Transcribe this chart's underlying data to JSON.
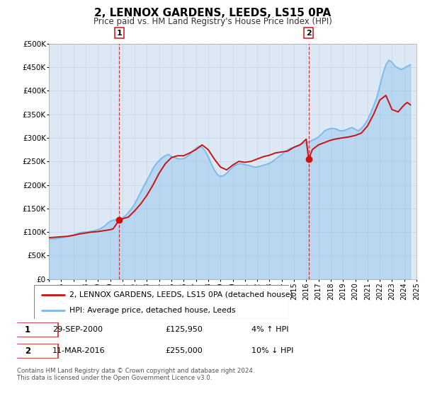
{
  "title": "2, LENNOX GARDENS, LEEDS, LS15 0PA",
  "subtitle": "Price paid vs. HM Land Registry's House Price Index (HPI)",
  "hpi_color": "#7ab8e8",
  "price_color": "#cc1111",
  "plot_bg_color": "#dce9f5",
  "grid_color": "#c8d8ec",
  "ylim": [
    0,
    500000
  ],
  "yticks": [
    0,
    50000,
    100000,
    150000,
    200000,
    250000,
    300000,
    350000,
    400000,
    450000,
    500000
  ],
  "ytick_labels": [
    "£0",
    "£50K",
    "£100K",
    "£150K",
    "£200K",
    "£250K",
    "£300K",
    "£350K",
    "£400K",
    "£450K",
    "£500K"
  ],
  "xmin": 1995,
  "xmax": 2025,
  "marker1_x": 2000.75,
  "marker1_y": 125950,
  "marker2_x": 2016.2,
  "marker2_y": 255000,
  "marker1_date": "29-SEP-2000",
  "marker1_price": "£125,950",
  "marker1_hpi": "4% ↑ HPI",
  "marker2_date": "11-MAR-2016",
  "marker2_price": "£255,000",
  "marker2_hpi": "10% ↓ HPI",
  "legend_line1": "2, LENNOX GARDENS, LEEDS, LS15 0PA (detached house)",
  "legend_line2": "HPI: Average price, detached house, Leeds",
  "footer": "Contains HM Land Registry data © Crown copyright and database right 2024.\nThis data is licensed under the Open Government Licence v3.0.",
  "hpi_data_x": [
    1995.0,
    1995.25,
    1995.5,
    1995.75,
    1996.0,
    1996.25,
    1996.5,
    1996.75,
    1997.0,
    1997.25,
    1997.5,
    1997.75,
    1998.0,
    1998.25,
    1998.5,
    1998.75,
    1999.0,
    1999.25,
    1999.5,
    1999.75,
    2000.0,
    2000.25,
    2000.5,
    2000.75,
    2001.0,
    2001.25,
    2001.5,
    2001.75,
    2002.0,
    2002.25,
    2002.5,
    2002.75,
    2003.0,
    2003.25,
    2003.5,
    2003.75,
    2004.0,
    2004.25,
    2004.5,
    2004.75,
    2005.0,
    2005.25,
    2005.5,
    2005.75,
    2006.0,
    2006.25,
    2006.5,
    2006.75,
    2007.0,
    2007.25,
    2007.5,
    2007.75,
    2008.0,
    2008.25,
    2008.5,
    2008.75,
    2009.0,
    2009.25,
    2009.5,
    2009.75,
    2010.0,
    2010.25,
    2010.5,
    2010.75,
    2011.0,
    2011.25,
    2011.5,
    2011.75,
    2012.0,
    2012.25,
    2012.5,
    2012.75,
    2013.0,
    2013.25,
    2013.5,
    2013.75,
    2014.0,
    2014.25,
    2014.5,
    2014.75,
    2015.0,
    2015.25,
    2015.5,
    2015.75,
    2016.0,
    2016.25,
    2016.5,
    2016.75,
    2017.0,
    2017.25,
    2017.5,
    2017.75,
    2018.0,
    2018.25,
    2018.5,
    2018.75,
    2019.0,
    2019.25,
    2019.5,
    2019.75,
    2020.0,
    2020.25,
    2020.5,
    2020.75,
    2021.0,
    2021.25,
    2021.5,
    2021.75,
    2022.0,
    2022.25,
    2022.5,
    2022.75,
    2023.0,
    2023.25,
    2023.5,
    2023.75,
    2024.0,
    2024.25,
    2024.5
  ],
  "hpi_data_y": [
    85000,
    85500,
    86000,
    87000,
    88000,
    89000,
    90500,
    92000,
    94000,
    96000,
    98000,
    100000,
    100000,
    101000,
    102000,
    103500,
    105000,
    108000,
    112000,
    118000,
    123000,
    125000,
    127000,
    128000,
    130000,
    135000,
    142000,
    150000,
    160000,
    172000,
    185000,
    198000,
    210000,
    222000,
    235000,
    245000,
    252000,
    258000,
    262000,
    265000,
    260000,
    258000,
    256000,
    255000,
    256000,
    260000,
    265000,
    272000,
    278000,
    282000,
    280000,
    272000,
    260000,
    245000,
    232000,
    222000,
    218000,
    220000,
    225000,
    232000,
    238000,
    242000,
    245000,
    245000,
    243000,
    242000,
    240000,
    238000,
    238000,
    240000,
    242000,
    244000,
    246000,
    250000,
    255000,
    260000,
    265000,
    270000,
    275000,
    278000,
    280000,
    283000,
    286000,
    288000,
    290000,
    292000,
    295000,
    298000,
    302000,
    308000,
    315000,
    318000,
    320000,
    320000,
    318000,
    315000,
    315000,
    317000,
    320000,
    322000,
    318000,
    315000,
    320000,
    328000,
    338000,
    352000,
    368000,
    385000,
    410000,
    435000,
    455000,
    465000,
    460000,
    452000,
    448000,
    445000,
    448000,
    452000,
    455000
  ],
  "price_data_x": [
    1995.0,
    1995.5,
    1996.0,
    1996.5,
    1997.0,
    1997.5,
    1997.75,
    1998.0,
    1998.5,
    1999.0,
    1999.5,
    2000.0,
    2000.25,
    2000.75,
    2001.5,
    2002.0,
    2002.5,
    2003.0,
    2003.5,
    2004.0,
    2004.5,
    2005.0,
    2005.5,
    2006.0,
    2006.5,
    2007.0,
    2007.25,
    2007.5,
    2008.0,
    2008.5,
    2009.0,
    2009.5,
    2010.0,
    2010.5,
    2011.0,
    2011.5,
    2012.0,
    2012.5,
    2013.0,
    2013.5,
    2014.0,
    2014.5,
    2015.0,
    2015.5,
    2016.0,
    2016.2,
    2016.5,
    2017.0,
    2017.5,
    2018.0,
    2018.5,
    2019.0,
    2019.5,
    2020.0,
    2020.5,
    2021.0,
    2021.5,
    2022.0,
    2022.5,
    2023.0,
    2023.5,
    2024.0,
    2024.25,
    2024.5
  ],
  "price_data_y": [
    88000,
    89000,
    90000,
    91000,
    93000,
    96000,
    97000,
    98000,
    100000,
    101000,
    103000,
    105000,
    107000,
    125950,
    132000,
    145000,
    160000,
    178000,
    200000,
    225000,
    245000,
    258000,
    262000,
    262000,
    268000,
    275000,
    280000,
    285000,
    275000,
    255000,
    238000,
    232000,
    242000,
    250000,
    248000,
    250000,
    255000,
    260000,
    263000,
    268000,
    270000,
    272000,
    280000,
    285000,
    297000,
    255000,
    275000,
    285000,
    290000,
    295000,
    298000,
    300000,
    302000,
    305000,
    310000,
    325000,
    350000,
    380000,
    390000,
    360000,
    355000,
    370000,
    375000,
    370000
  ]
}
